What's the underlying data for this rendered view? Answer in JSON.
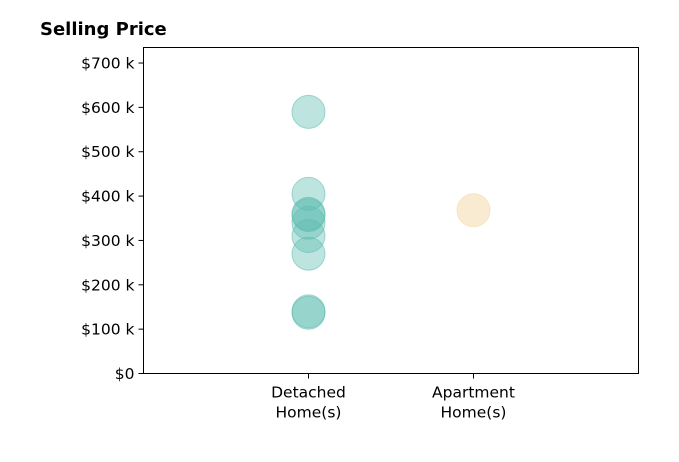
{
  "chart_data": {
    "type": "scatter",
    "title": "Selling Price",
    "xlabel": "",
    "ylabel": "",
    "categories": [
      [
        "Detached",
        "Home(s)"
      ],
      [
        "Apartment",
        "Home(s)"
      ]
    ],
    "xlim": [
      0,
      3
    ],
    "ylim": [
      0,
      735000
    ],
    "yticks": [
      {
        "value": 0,
        "label": "$0"
      },
      {
        "value": 100000,
        "label": "$100 k"
      },
      {
        "value": 200000,
        "label": "$200 k"
      },
      {
        "value": 300000,
        "label": "$300 k"
      },
      {
        "value": 400000,
        "label": "$400 k"
      },
      {
        "value": 500000,
        "label": "$500 k"
      },
      {
        "value": 600000,
        "label": "$600 k"
      },
      {
        "value": 700000,
        "label": "$700 k"
      }
    ],
    "grid": false,
    "series": [
      {
        "category": 0,
        "color": "#5dbcb0",
        "opacity": 0.4,
        "values": [
          590000,
          405000,
          360000,
          357000,
          340000,
          310000,
          270000,
          140000,
          137000
        ]
      },
      {
        "category": 1,
        "color": "#f5deb3",
        "opacity": 0.6,
        "values": [
          368000
        ]
      }
    ]
  }
}
